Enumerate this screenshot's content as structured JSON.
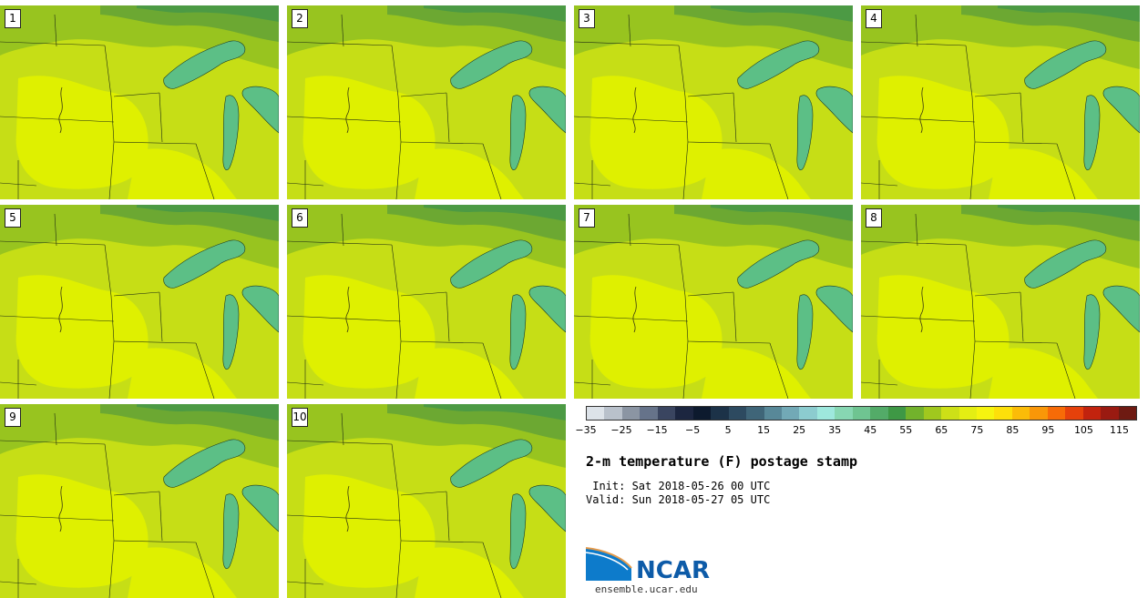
{
  "panels": [
    {
      "label": "1"
    },
    {
      "label": "2"
    },
    {
      "label": "3"
    },
    {
      "label": "4"
    },
    {
      "label": "5"
    },
    {
      "label": "6"
    },
    {
      "label": "7"
    },
    {
      "label": "8"
    },
    {
      "label": "9"
    },
    {
      "label": "10"
    }
  ],
  "colorbar": {
    "colors": [
      "#dde3e9",
      "#b9c1cb",
      "#8b95a3",
      "#66738a",
      "#3a4560",
      "#1c2640",
      "#0d1a2e",
      "#1c3248",
      "#2d4a60",
      "#3f6578",
      "#588898",
      "#72a9b6",
      "#8ccccf",
      "#9ee8dd",
      "#87d7b2",
      "#6fc491",
      "#53ab68",
      "#3e9845",
      "#72b22c",
      "#a0c81e",
      "#cde017",
      "#e4ee13",
      "#f6f40f",
      "#fde00a",
      "#fbbc08",
      "#f99708",
      "#f76b07",
      "#e6410b",
      "#c2230e",
      "#9a1a11",
      "#6e1a12"
    ],
    "ticks": [
      "−35",
      "−25",
      "−15",
      "−5",
      "5",
      "15",
      "25",
      "35",
      "45",
      "55",
      "65",
      "75",
      "85",
      "95",
      "105",
      "115"
    ]
  },
  "title": "2-m temperature (F) postage stamp",
  "init_line": " Init: Sat 2018-05-26 00 UTC",
  "valid_line": "Valid: Sun 2018-05-27 05 UTC",
  "logo": {
    "text": "NCAR",
    "site": "ensemble.ucar.edu",
    "color": "#0d5ba8"
  },
  "map_colors": {
    "warm": "#dff000",
    "mid": "#c6de16",
    "cool": "#98c41f",
    "cold": "#6ca832",
    "dark": "#4c9a44",
    "lake": "#5cbf86"
  }
}
